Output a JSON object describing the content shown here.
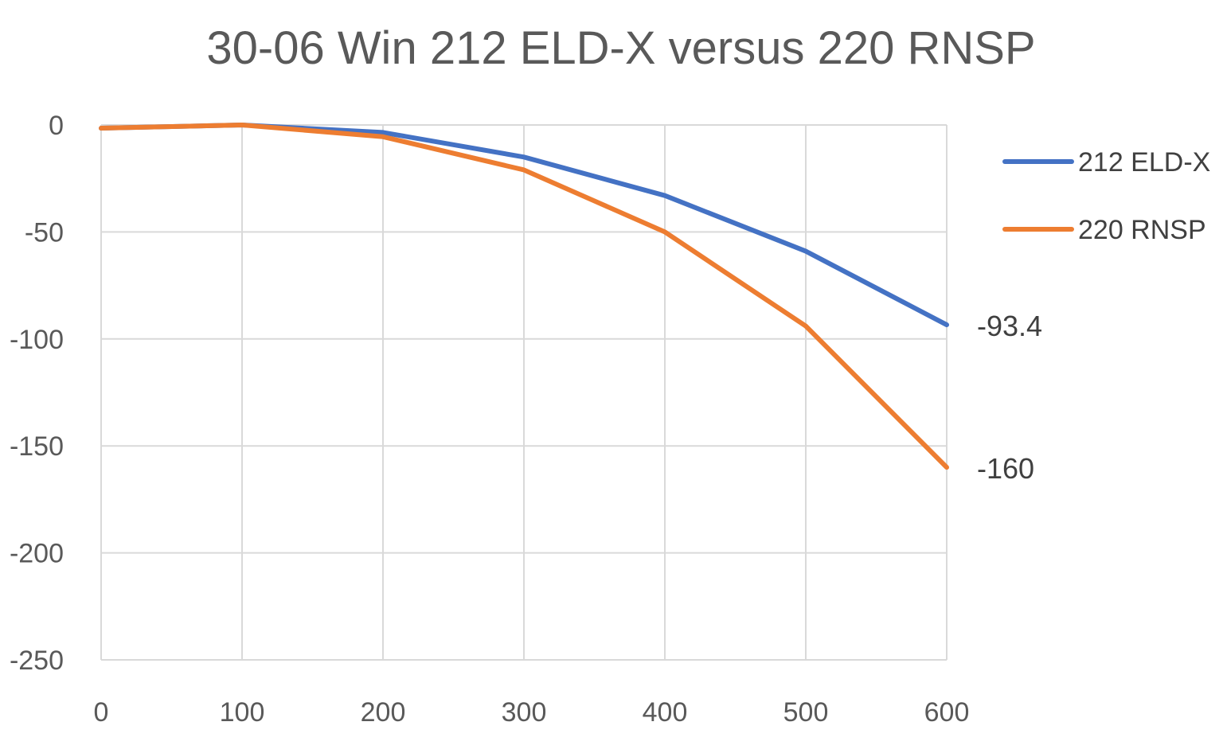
{
  "chart_data": {
    "type": "line",
    "title": "30-06 Win  212 ELD-X  versus  220 RNSP",
    "x": [
      0,
      100,
      200,
      300,
      400,
      500,
      600
    ],
    "xlim": [
      0,
      600
    ],
    "ylim": [
      -250,
      0
    ],
    "x_ticks": [
      "0",
      "100",
      "200",
      "300",
      "400",
      "500",
      "600"
    ],
    "y_ticks": [
      "0",
      "-50",
      "-100",
      "-150",
      "-200",
      "-250"
    ],
    "grid": true,
    "legend": "right",
    "series": [
      {
        "name": "212 ELD-X",
        "color": "#4472c4",
        "values": [
          -1.5,
          0,
          -3.5,
          -15,
          -33,
          -59,
          -93.4
        ],
        "end_label": "-93.4"
      },
      {
        "name": "220 RNSP",
        "color": "#ed7d31",
        "values": [
          -1.5,
          0,
          -5.5,
          -21,
          -50,
          -94,
          -160
        ],
        "end_label": "-160"
      }
    ]
  }
}
